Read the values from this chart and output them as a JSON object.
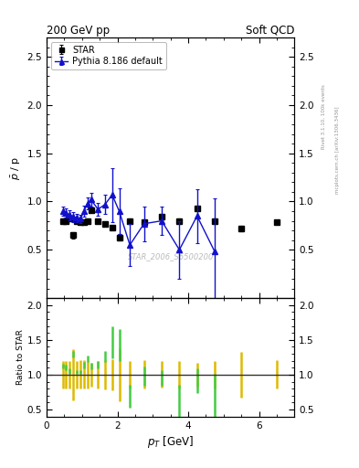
{
  "title_left": "200 GeV pp",
  "title_right": "Soft QCD",
  "ylabel_main": "$\\bar{p}$ / p",
  "ylabel_ratio": "Ratio to STAR",
  "xlabel": "$p_T$ [GeV]",
  "right_label_top": "Rivet 3.1.10, 100k events",
  "right_label_bot": "mcplots.cern.ch [arXiv:1306.3436]",
  "watermark": "STAR_2006_S6500200",
  "ylim_main": [
    0.0,
    2.7
  ],
  "ylim_ratio": [
    0.4,
    2.1
  ],
  "xlim": [
    0.0,
    7.0
  ],
  "star_x": [
    0.45,
    0.55,
    0.65,
    0.75,
    0.85,
    0.95,
    1.05,
    1.15,
    1.25,
    1.45,
    1.65,
    1.85,
    2.05,
    2.35,
    2.75,
    3.25,
    3.75,
    4.25,
    4.75,
    5.5,
    6.5
  ],
  "star_y": [
    0.8,
    0.8,
    0.82,
    0.65,
    0.8,
    0.79,
    0.79,
    0.8,
    0.91,
    0.8,
    0.77,
    0.73,
    0.63,
    0.8,
    0.79,
    0.84,
    0.8,
    0.93,
    0.8,
    0.72,
    0.79
  ],
  "star_yerr": [
    0.02,
    0.02,
    0.02,
    0.03,
    0.02,
    0.02,
    0.02,
    0.02,
    0.02,
    0.02,
    0.02,
    0.02,
    0.03,
    0.02,
    0.02,
    0.02,
    0.02,
    0.02,
    0.02,
    0.03,
    0.02
  ],
  "pythia_x": [
    0.45,
    0.55,
    0.65,
    0.75,
    0.85,
    0.95,
    1.05,
    1.15,
    1.25,
    1.45,
    1.65,
    1.85,
    2.05,
    2.35,
    2.75,
    3.25,
    3.75,
    4.25,
    4.75
  ],
  "pythia_y": [
    0.9,
    0.88,
    0.86,
    0.84,
    0.83,
    0.82,
    0.9,
    0.98,
    1.02,
    0.92,
    0.97,
    1.07,
    0.9,
    0.55,
    0.77,
    0.8,
    0.5,
    0.85,
    0.48
  ],
  "pythia_yerr": [
    0.05,
    0.05,
    0.05,
    0.05,
    0.04,
    0.04,
    0.06,
    0.06,
    0.07,
    0.07,
    0.1,
    0.28,
    0.24,
    0.22,
    0.18,
    0.15,
    0.3,
    0.28,
    0.55
  ],
  "star_color": "#000000",
  "pythia_color": "#1111cc",
  "ratio_star_color": "#ddbb00",
  "ratio_pythia_color": "#44cc44",
  "bg_color": "#ffffff",
  "yticks_main": [
    0.5,
    1.0,
    1.5,
    2.0,
    2.5
  ],
  "yticks_ratio": [
    0.5,
    1.0,
    1.5,
    2.0
  ]
}
